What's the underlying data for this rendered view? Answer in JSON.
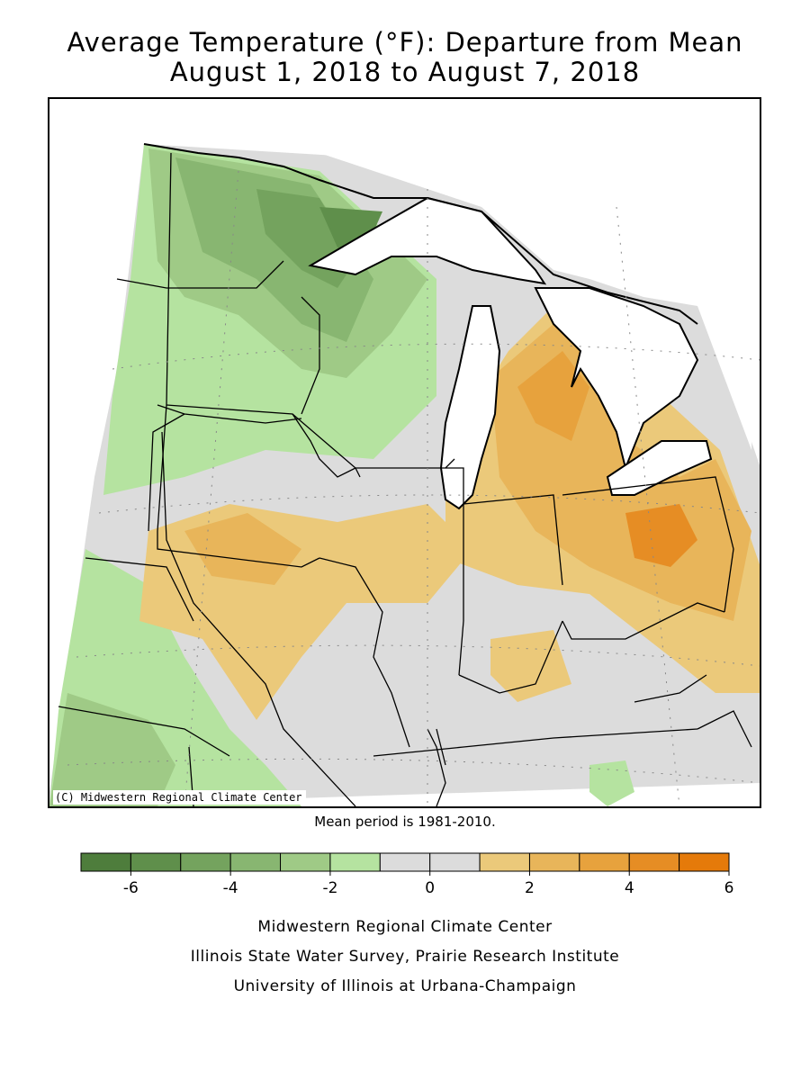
{
  "title_line1": "Average Temperature (°F): Departure from Mean",
  "title_line2": "August 1, 2018 to August 7, 2018",
  "copyright": "(C) Midwestern Regional Climate Center",
  "mean_note": "Mean period is 1981-2010.",
  "legend": {
    "colors": [
      "#4e7d3c",
      "#5f8f4b",
      "#74a35e",
      "#88b671",
      "#9fca86",
      "#b5e3a0",
      "#dcdcdc",
      "#dcdcdc",
      "#ebc97a",
      "#e8b55a",
      "#e7a23d",
      "#e68d24",
      "#e57a0a"
    ],
    "labels": [
      "-6",
      "-4",
      "-2",
      "0",
      "2",
      "4",
      "6"
    ]
  },
  "credits": [
    "Midwestern Regional Climate Center",
    "Illinois State Water Survey, Prairie Research Institute",
    "University of Illinois at Urbana-Champaign"
  ],
  "palette": {
    "green_dark": "#4e7d3c",
    "green_mid": "#74a35e",
    "green_light": "#9fca86",
    "green_pale": "#b5e3a0",
    "gray": "#dcdcdc",
    "orange_pale": "#ebc97a",
    "orange_mid": "#e8b55a",
    "orange_dark": "#e68d24",
    "water": "#ffffff"
  }
}
